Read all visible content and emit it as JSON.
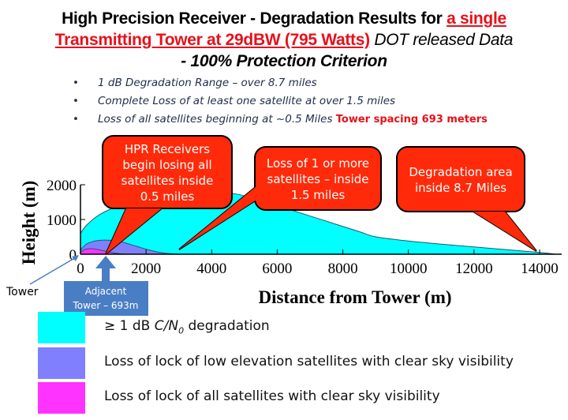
{
  "header": {
    "title_part1": "High Precision Receiver - Degradation Results for ",
    "title_red1": "a single",
    "title_red2": "Transmitting Tower at 29dBW (795 Watts)",
    "title_part2": " DOT released Data",
    "title_line3": "- 100% Protection Criterion"
  },
  "bullets": [
    {
      "text": "1 dB Degradation Range – over 8.7 miles",
      "highlight": ""
    },
    {
      "text": "Complete Loss of at least one satellite at over 1.5 miles",
      "highlight": ""
    },
    {
      "text": "Loss of all satellites beginning at ~0.5 Miles ",
      "highlight": "Tower spacing 693 meters"
    }
  ],
  "bullet_symbol": "•",
  "callouts": [
    {
      "lines": [
        "HPR Receivers",
        "begin losing all",
        "satellites inside",
        "0.5 miles"
      ]
    },
    {
      "lines": [
        "Loss of 1 or more",
        "satellites – inside",
        "1.5 miles"
      ]
    },
    {
      "lines": [
        "Degradation area",
        "inside 8.7 Miles"
      ]
    }
  ],
  "annotations": {
    "tower_label": "Tower",
    "adjacent_line1": "Adjacent",
    "adjacent_line2": "Tower – 693m"
  },
  "colors": {
    "cyan": "#00ffff",
    "purple": "#8080ff",
    "magenta": "#ff33ff",
    "callout_red": "#ff2a0a",
    "arrow_blue": "#4a7ec4"
  },
  "chart_data": {
    "type": "area",
    "title": "",
    "xlabel": "Distance from Tower (m)",
    "ylabel": "Height (m)",
    "xlim": [
      0,
      14500
    ],
    "ylim": [
      0,
      2000
    ],
    "xticks": [
      0,
      2000,
      4000,
      6000,
      8000,
      10000,
      12000,
      14000
    ],
    "yticks": [
      0,
      1000,
      2000
    ],
    "grid": false,
    "legend_position": "bottom",
    "series": [
      {
        "name": "≥ 1 dB C/N0 degradation",
        "color": "#00ffff",
        "x": [
          0,
          200,
          600,
          1200,
          2000,
          3000,
          4000,
          4700,
          5500,
          6500,
          7500,
          8500,
          9000,
          10000,
          11000,
          12000,
          13000,
          14000,
          14500
        ],
        "y": [
          600,
          850,
          1150,
          1400,
          1600,
          1720,
          1760,
          1740,
          1550,
          1250,
          950,
          650,
          500,
          380,
          290,
          210,
          130,
          50,
          0
        ]
      },
      {
        "name": "Loss of lock of low elevation satellites with clear sky visibility",
        "color": "#8080ff",
        "x": [
          0,
          200,
          500,
          900,
          1300,
          1700,
          2100,
          2500,
          3000
        ],
        "y": [
          120,
          300,
          390,
          400,
          340,
          230,
          120,
          40,
          0
        ]
      },
      {
        "name": "Loss of lock of all satellites with clear sky visibility",
        "color": "#ff33ff",
        "x": [
          0,
          150,
          350,
          600,
          900,
          1200,
          1400
        ],
        "y": [
          50,
          140,
          160,
          120,
          60,
          15,
          0
        ]
      }
    ],
    "legend": [
      {
        "label_pre": "≥ 1 dB ",
        "label_ital": "C/N",
        "label_sub": "0",
        "label_post": " degradation",
        "color": "#00ffff"
      },
      {
        "label": "Loss of lock of low elevation satellites with clear sky visibility",
        "color": "#8080ff"
      },
      {
        "label": "Loss of lock of all satellites with clear sky visibility",
        "color": "#ff33ff"
      }
    ]
  }
}
